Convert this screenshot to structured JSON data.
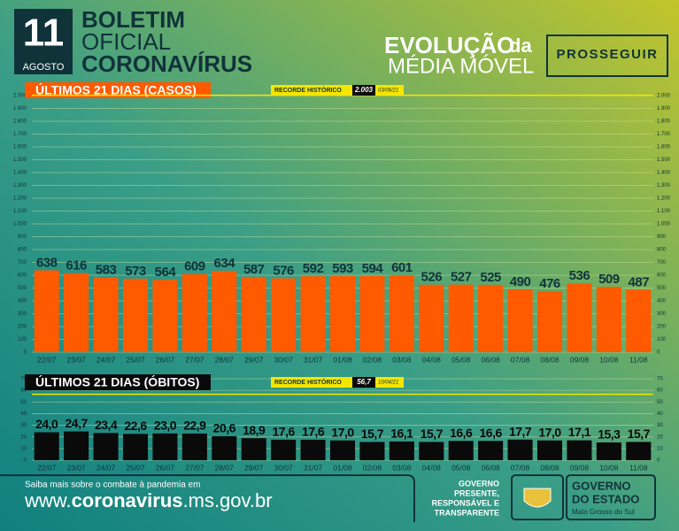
{
  "header": {
    "day": "11",
    "month": "AGOSTO",
    "line1": "BOLETIM",
    "line2": "OFICIAL",
    "line3": "CORONAVÍRUS",
    "evolution": "EVOLUÇÃO",
    "evolution_da": "da",
    "evolution_subtitle": "MÉDIA MÓVEL",
    "brand": "PROSSEGUIR"
  },
  "footer": {
    "prompt": "Saiba mais sobre o combate à pandemia em",
    "url_prefix": "www.",
    "url_bold": "coronavirus",
    "url_suffix": ".ms.gov.br",
    "slogan": [
      "GOVERNO",
      "PRESENTE,",
      "RESPONSÁVEL E",
      "TRANSPARENTE"
    ],
    "gov_line1": "GOVERNO",
    "gov_line2": "DO ESTADO",
    "state": "Mato Grosso do Sul"
  },
  "chart_data": [
    {
      "type": "bar",
      "title": "ÚLTIMOS 21 DIAS (CASOS)",
      "categories": [
        "22/07",
        "23/07",
        "24/07",
        "25/07",
        "26/07",
        "27/07",
        "28/07",
        "29/07",
        "30/07",
        "31/07",
        "01/08",
        "02/08",
        "03/08",
        "04/08",
        "05/08",
        "06/08",
        "07/08",
        "08/08",
        "09/08",
        "10/08",
        "11/08"
      ],
      "values": [
        638,
        616,
        583,
        573,
        564,
        609,
        634,
        587,
        576,
        592,
        593,
        594,
        601,
        526,
        527,
        525,
        490,
        476,
        536,
        509,
        487
      ],
      "color": "#ff5a00",
      "ylim": [
        0,
        2000
      ],
      "yticks": [
        0,
        100,
        200,
        300,
        400,
        500,
        600,
        700,
        800,
        900,
        {
          "value": 1000,
          "label": "1.000"
        },
        {
          "value": 1100,
          "label": "1.100"
        },
        {
          "value": 1200,
          "label": "1.200"
        },
        {
          "value": 1300,
          "label": "1.300"
        },
        {
          "value": 1400,
          "label": "1.400"
        },
        {
          "value": 1500,
          "label": "1.500"
        },
        {
          "value": 1600,
          "label": "1.600"
        },
        {
          "value": 1700,
          "label": "1.700"
        },
        {
          "value": 1800,
          "label": "1.800"
        },
        {
          "value": 1900,
          "label": "1.900"
        },
        {
          "value": 2000,
          "label": "2.000"
        }
      ],
      "grid": true,
      "record": {
        "label": "RECORDE HISTÓRICO",
        "value": 2003,
        "value_label": "2.003",
        "date": "03/06/21"
      }
    },
    {
      "type": "bar",
      "title": "ÚLTIMOS 21 DIAS (ÓBITOS)",
      "categories": [
        "22/07",
        "23/07",
        "24/07",
        "25/07",
        "26/07",
        "27/07",
        "28/07",
        "29/07",
        "30/07",
        "31/07",
        "01/08",
        "02/08",
        "03/08",
        "04/08",
        "05/08",
        "06/08",
        "07/08",
        "08/08",
        "09/08",
        "10/08",
        "11/08"
      ],
      "values": [
        24.0,
        24.7,
        23.4,
        22.6,
        23.0,
        22.9,
        20.6,
        18.9,
        17.6,
        17.6,
        17.0,
        15.7,
        16.1,
        15.7,
        16.6,
        16.6,
        17.7,
        17.0,
        17.1,
        15.3,
        15.7
      ],
      "value_labels": [
        "24,0",
        "24,7",
        "23,4",
        "22,6",
        "23,0",
        "22,9",
        "20,6",
        "18,9",
        "17,6",
        "17,6",
        "17,0",
        "15,7",
        "16,1",
        "15,7",
        "16,6",
        "16,6",
        "17,7",
        "17,0",
        "17,1",
        "15,3",
        "15,7"
      ],
      "color": "#0a0a0a",
      "ylim": [
        0,
        70
      ],
      "yticks": [
        0,
        10,
        20,
        30,
        40,
        50,
        60,
        70
      ],
      "grid": true,
      "record": {
        "label": "RECORDE HISTÓRICO",
        "value": 56.7,
        "value_label": "56,7",
        "date": "10/04/21"
      }
    }
  ]
}
